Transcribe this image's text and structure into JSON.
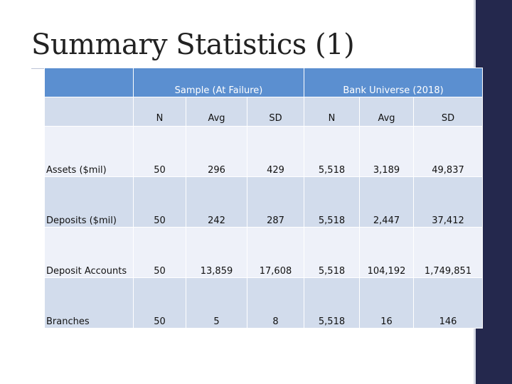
{
  "slide": {
    "title": "Summary Statistics (1)"
  },
  "table": {
    "group_headers": [
      "Sample (At Failure)",
      "Bank Universe (2018)"
    ],
    "column_headers": [
      "N",
      "Avg",
      "SD",
      "N",
      "Avg",
      "SD"
    ],
    "rows": [
      {
        "label": "Assets ($mil)",
        "values": [
          "50",
          "296",
          "429",
          "5,518",
          "3,189",
          "49,837"
        ]
      },
      {
        "label": "Deposits ($mil)",
        "values": [
          "50",
          "242",
          "287",
          "5,518",
          "2,447",
          "37,412"
        ]
      },
      {
        "label": "Deposit Accounts",
        "values": [
          "50",
          "13,859",
          "17,608",
          "5,518",
          "104,192",
          "1,749,851"
        ]
      },
      {
        "label": "Branches",
        "values": [
          "50",
          "5",
          "8",
          "5,518",
          "16",
          "146"
        ]
      }
    ]
  },
  "colors": {
    "header_blue": "#5b8fd0",
    "band_dark": "#d2dcec",
    "band_light": "#eef1f9",
    "sidebar_navy": "#24284d"
  }
}
